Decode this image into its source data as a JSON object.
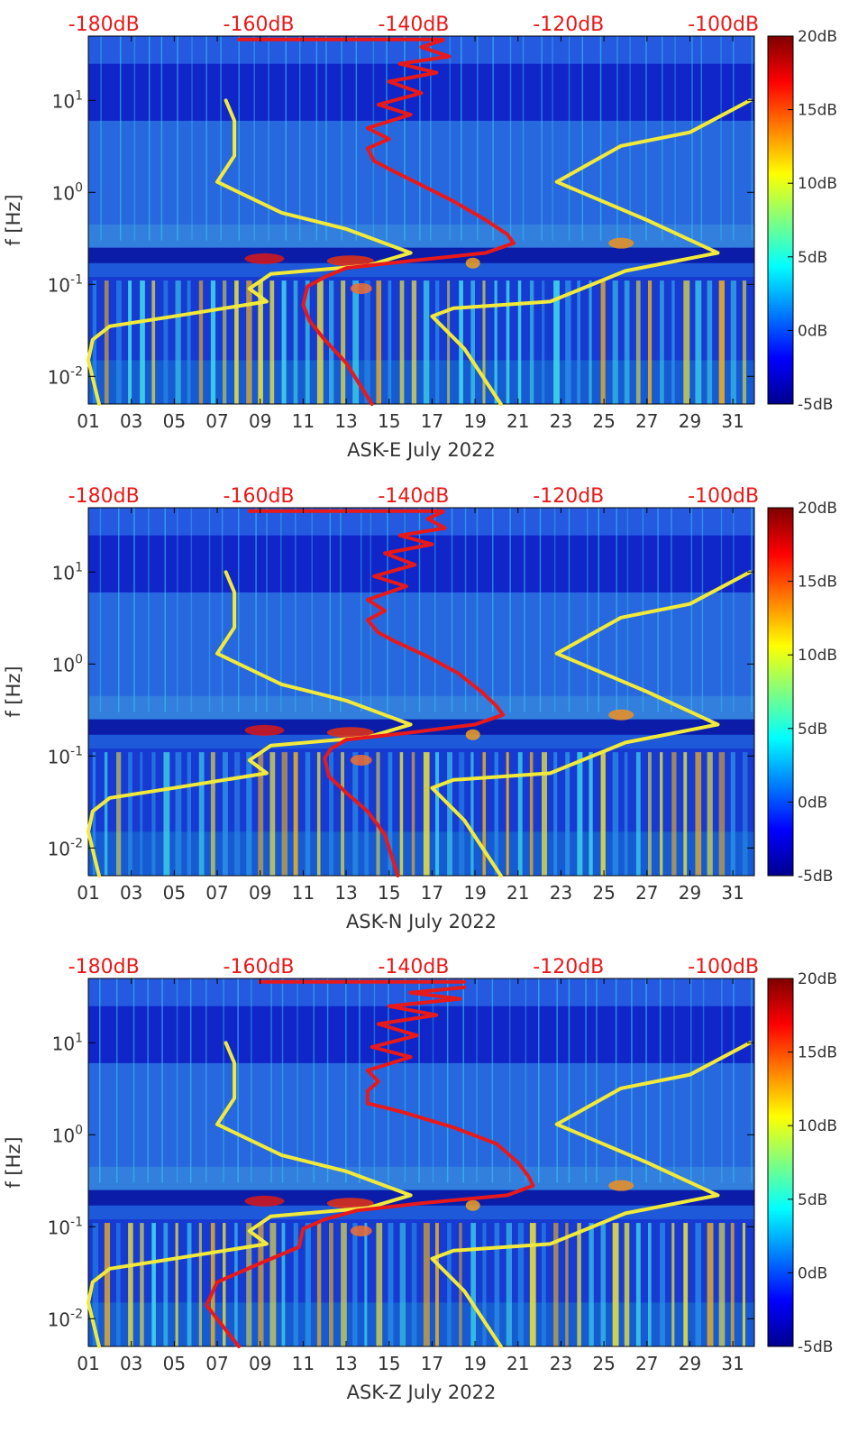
{
  "chart_data": [
    {
      "type": "heatmap",
      "title": "",
      "xlabel": "ASK-E July 2022",
      "ylabel": "f [Hz]",
      "x_ticks": [
        "01",
        "03",
        "05",
        "07",
        "09",
        "11",
        "13",
        "15",
        "17",
        "19",
        "21",
        "23",
        "25",
        "27",
        "29",
        "31"
      ],
      "xlim": [
        1,
        32
      ],
      "y_ticks": [
        {
          "value": 0.01,
          "base": "10",
          "exp": "-2"
        },
        {
          "value": 0.1,
          "base": "10",
          "exp": "-1"
        },
        {
          "value": 1,
          "base": "10",
          "exp": "0"
        },
        {
          "value": 10,
          "base": "10",
          "exp": "1"
        }
      ],
      "ylim": [
        0.005,
        50
      ],
      "top_axis_ticks": [
        "-180dB",
        "-160dB",
        "-140dB",
        "-120dB",
        "-100dB"
      ],
      "top_axis_range_dB": [
        -182,
        -96
      ],
      "colorbar_ticks": [
        "20dB",
        "15dB",
        "10dB",
        "5dB",
        "0dB",
        "-5dB"
      ],
      "colorbar_range": [
        -5,
        20
      ],
      "series": [
        {
          "name": "noise-model-low",
          "color": "#f2ea3a",
          "points": [
            [
              1.0,
              0.015
            ],
            [
              1.5,
              0.005
            ]
          ]
        },
        {
          "name": "noise-model-left",
          "color": "#f2ea3a",
          "points": [
            [
              7.4,
              10
            ],
            [
              7.8,
              6
            ],
            [
              7.8,
              2.5
            ],
            [
              7.0,
              1.3
            ],
            [
              10.0,
              0.6
            ],
            [
              13.0,
              0.4
            ],
            [
              16.0,
              0.22
            ],
            [
              14.0,
              0.16
            ],
            [
              9.5,
              0.13
            ],
            [
              8.5,
              0.09
            ],
            [
              9.3,
              0.065
            ],
            [
              5.0,
              0.045
            ],
            [
              2.0,
              0.035
            ],
            [
              1.2,
              0.025
            ],
            [
              1.0,
              0.015
            ]
          ]
        },
        {
          "name": "noise-model-right",
          "color": "#f2ea3a",
          "points": [
            [
              31.8,
              10
            ],
            [
              29.0,
              4.5
            ],
            [
              25.8,
              3.2
            ],
            [
              22.8,
              1.3
            ],
            [
              27.0,
              0.5
            ],
            [
              30.3,
              0.22
            ],
            [
              26.0,
              0.14
            ],
            [
              22.5,
              0.065
            ],
            [
              18.0,
              0.055
            ],
            [
              17.0,
              0.045
            ],
            [
              18.5,
              0.02
            ],
            [
              20.2,
              0.005
            ]
          ]
        },
        {
          "name": "station-psd",
          "color": "#e8191a",
          "points": [
            [
              17.5,
              45
            ],
            [
              16.5,
              38
            ],
            [
              17.8,
              30
            ],
            [
              15.5,
              25
            ],
            [
              17.2,
              20
            ],
            [
              15.0,
              16
            ],
            [
              16.5,
              12
            ],
            [
              14.5,
              9
            ],
            [
              16.0,
              7
            ],
            [
              14.0,
              5
            ],
            [
              15.0,
              3.8
            ],
            [
              14.0,
              3
            ],
            [
              14.3,
              2.2
            ],
            [
              15.0,
              1.8
            ],
            [
              16.5,
              1.2
            ],
            [
              18.0,
              0.8
            ],
            [
              19.5,
              0.5
            ],
            [
              20.5,
              0.35
            ],
            [
              20.8,
              0.28
            ],
            [
              19.5,
              0.22
            ],
            [
              16.0,
              0.18
            ],
            [
              13.0,
              0.15
            ],
            [
              12.0,
              0.12
            ],
            [
              11.2,
              0.095
            ],
            [
              11.0,
              0.06
            ],
            [
              11.3,
              0.04
            ],
            [
              12.0,
              0.025
            ],
            [
              13.0,
              0.014
            ],
            [
              14.2,
              0.005
            ]
          ]
        },
        {
          "name": "station-psd-top",
          "color": "#e8191a",
          "points": [
            [
              8.0,
              46
            ],
            [
              13.0,
              46
            ],
            [
              17.5,
              46
            ]
          ]
        }
      ]
    },
    {
      "type": "heatmap",
      "title": "",
      "xlabel": "ASK-N July 2022",
      "ylabel": "f [Hz]",
      "x_ticks": [
        "01",
        "03",
        "05",
        "07",
        "09",
        "11",
        "13",
        "15",
        "17",
        "19",
        "21",
        "23",
        "25",
        "27",
        "29",
        "31"
      ],
      "xlim": [
        1,
        32
      ],
      "y_ticks": [
        {
          "value": 0.01,
          "base": "10",
          "exp": "-2"
        },
        {
          "value": 0.1,
          "base": "10",
          "exp": "-1"
        },
        {
          "value": 1,
          "base": "10",
          "exp": "0"
        },
        {
          "value": 10,
          "base": "10",
          "exp": "1"
        }
      ],
      "ylim": [
        0.005,
        50
      ],
      "top_axis_ticks": [
        "-180dB",
        "-160dB",
        "-140dB",
        "-120dB",
        "-100dB"
      ],
      "top_axis_range_dB": [
        -182,
        -96
      ],
      "colorbar_ticks": [
        "20dB",
        "15dB",
        "10dB",
        "5dB",
        "0dB",
        "-5dB"
      ],
      "colorbar_range": [
        -5,
        20
      ],
      "series": [
        {
          "name": "noise-model-low",
          "color": "#f2ea3a",
          "points": [
            [
              1.0,
              0.015
            ],
            [
              1.5,
              0.005
            ]
          ]
        },
        {
          "name": "noise-model-left",
          "color": "#f2ea3a",
          "points": [
            [
              7.4,
              10
            ],
            [
              7.8,
              6
            ],
            [
              7.8,
              2.5
            ],
            [
              7.0,
              1.3
            ],
            [
              10.0,
              0.6
            ],
            [
              13.0,
              0.4
            ],
            [
              16.0,
              0.22
            ],
            [
              14.0,
              0.16
            ],
            [
              9.5,
              0.13
            ],
            [
              8.5,
              0.09
            ],
            [
              9.3,
              0.065
            ],
            [
              5.0,
              0.045
            ],
            [
              2.0,
              0.035
            ],
            [
              1.2,
              0.025
            ],
            [
              1.0,
              0.015
            ]
          ]
        },
        {
          "name": "noise-model-right",
          "color": "#f2ea3a",
          "points": [
            [
              31.8,
              10
            ],
            [
              29.0,
              4.5
            ],
            [
              25.8,
              3.2
            ],
            [
              22.8,
              1.3
            ],
            [
              27.0,
              0.5
            ],
            [
              30.3,
              0.22
            ],
            [
              26.0,
              0.14
            ],
            [
              22.5,
              0.065
            ],
            [
              18.0,
              0.055
            ],
            [
              17.0,
              0.045
            ],
            [
              18.5,
              0.02
            ],
            [
              20.2,
              0.005
            ]
          ]
        },
        {
          "name": "station-psd",
          "color": "#e8191a",
          "points": [
            [
              17.5,
              45
            ],
            [
              16.8,
              38
            ],
            [
              17.6,
              30
            ],
            [
              15.5,
              25
            ],
            [
              17.0,
              20
            ],
            [
              14.8,
              16
            ],
            [
              16.2,
              12
            ],
            [
              14.3,
              9
            ],
            [
              15.8,
              7
            ],
            [
              14.0,
              5
            ],
            [
              14.8,
              3.8
            ],
            [
              14.0,
              3
            ],
            [
              14.5,
              2.2
            ],
            [
              15.2,
              1.8
            ],
            [
              16.8,
              1.2
            ],
            [
              18.2,
              0.8
            ],
            [
              19.3,
              0.5
            ],
            [
              20.0,
              0.35
            ],
            [
              20.3,
              0.28
            ],
            [
              19.0,
              0.22
            ],
            [
              16.0,
              0.18
            ],
            [
              13.0,
              0.15
            ],
            [
              12.3,
              0.12
            ],
            [
              12.0,
              0.095
            ],
            [
              12.2,
              0.06
            ],
            [
              13.0,
              0.04
            ],
            [
              14.0,
              0.025
            ],
            [
              14.8,
              0.014
            ],
            [
              15.4,
              0.005
            ]
          ]
        },
        {
          "name": "station-psd-top",
          "color": "#e8191a",
          "points": [
            [
              8.5,
              46
            ],
            [
              13.0,
              46
            ],
            [
              17.5,
              46
            ]
          ]
        }
      ]
    },
    {
      "type": "heatmap",
      "title": "",
      "xlabel": "ASK-Z July 2022",
      "ylabel": "f [Hz]",
      "x_ticks": [
        "01",
        "03",
        "05",
        "07",
        "09",
        "11",
        "13",
        "15",
        "17",
        "19",
        "21",
        "23",
        "25",
        "27",
        "29",
        "31"
      ],
      "xlim": [
        1,
        32
      ],
      "y_ticks": [
        {
          "value": 0.01,
          "base": "10",
          "exp": "-2"
        },
        {
          "value": 0.1,
          "base": "10",
          "exp": "-1"
        },
        {
          "value": 1,
          "base": "10",
          "exp": "0"
        },
        {
          "value": 10,
          "base": "10",
          "exp": "1"
        }
      ],
      "ylim": [
        0.005,
        50
      ],
      "top_axis_ticks": [
        "-180dB",
        "-160dB",
        "-140dB",
        "-120dB",
        "-100dB"
      ],
      "top_axis_range_dB": [
        -182,
        -96
      ],
      "colorbar_ticks": [
        "20dB",
        "15dB",
        "10dB",
        "5dB",
        "0dB",
        "-5dB"
      ],
      "colorbar_range": [
        -5,
        20
      ],
      "series": [
        {
          "name": "noise-model-low",
          "color": "#f2ea3a",
          "points": [
            [
              1.0,
              0.015
            ],
            [
              1.5,
              0.005
            ]
          ]
        },
        {
          "name": "noise-model-left",
          "color": "#f2ea3a",
          "points": [
            [
              7.4,
              10
            ],
            [
              7.8,
              6
            ],
            [
              7.8,
              2.5
            ],
            [
              7.0,
              1.3
            ],
            [
              10.0,
              0.6
            ],
            [
              13.0,
              0.4
            ],
            [
              16.0,
              0.22
            ],
            [
              14.0,
              0.16
            ],
            [
              9.5,
              0.13
            ],
            [
              8.5,
              0.09
            ],
            [
              9.3,
              0.065
            ],
            [
              5.0,
              0.045
            ],
            [
              2.0,
              0.035
            ],
            [
              1.2,
              0.025
            ],
            [
              1.0,
              0.015
            ]
          ]
        },
        {
          "name": "noise-model-right",
          "color": "#f2ea3a",
          "points": [
            [
              31.8,
              10
            ],
            [
              29.0,
              4.5
            ],
            [
              25.8,
              3.2
            ],
            [
              22.8,
              1.3
            ],
            [
              27.0,
              0.5
            ],
            [
              30.3,
              0.22
            ],
            [
              26.0,
              0.14
            ],
            [
              22.5,
              0.065
            ],
            [
              18.0,
              0.055
            ],
            [
              17.0,
              0.045
            ],
            [
              18.5,
              0.02
            ],
            [
              20.2,
              0.005
            ]
          ]
        },
        {
          "name": "station-psd",
          "color": "#e8191a",
          "points": [
            [
              18.5,
              40
            ],
            [
              16.0,
              35
            ],
            [
              18.3,
              30
            ],
            [
              15.0,
              25
            ],
            [
              17.2,
              20
            ],
            [
              14.5,
              16
            ],
            [
              16.3,
              12
            ],
            [
              14.2,
              9
            ],
            [
              16.0,
              7
            ],
            [
              14.0,
              5
            ],
            [
              14.5,
              3.8
            ],
            [
              14.0,
              3
            ],
            [
              14.0,
              2.2
            ],
            [
              15.5,
              1.8
            ],
            [
              18.0,
              1.2
            ],
            [
              20.0,
              0.8
            ],
            [
              21.0,
              0.5
            ],
            [
              21.5,
              0.35
            ],
            [
              21.7,
              0.28
            ],
            [
              20.5,
              0.22
            ],
            [
              16.5,
              0.18
            ],
            [
              13.5,
              0.15
            ],
            [
              12.0,
              0.12
            ],
            [
              11.0,
              0.095
            ],
            [
              10.8,
              0.06
            ],
            [
              9.0,
              0.04
            ],
            [
              7.0,
              0.025
            ],
            [
              6.5,
              0.014
            ],
            [
              8.0,
              0.005
            ]
          ]
        },
        {
          "name": "station-psd-top",
          "color": "#e8191a",
          "points": [
            [
              9.0,
              46
            ],
            [
              13.0,
              46
            ],
            [
              18.5,
              46
            ]
          ]
        }
      ]
    }
  ]
}
